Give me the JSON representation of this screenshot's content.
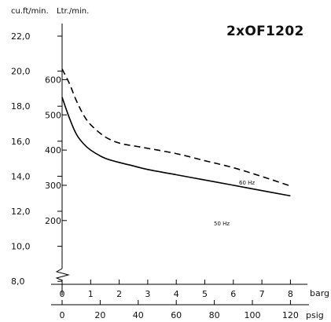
{
  "chart_data": {
    "type": "line",
    "title": "2xOF1202",
    "left_axes": {
      "cuft_unit": "cu.ft/min.",
      "ltr_unit": "Ltr./min.",
      "cuft_ticks": [
        "22,0",
        "20,0",
        "18,0",
        "16,0",
        "14,0",
        "12,0",
        "10,0",
        "8,0"
      ],
      "cuft_values": [
        22,
        20,
        18,
        16,
        14,
        12,
        10,
        8
      ],
      "ltr_ticks": [
        "600",
        "500",
        "400",
        "300",
        "200"
      ],
      "ltr_values": [
        600,
        500,
        400,
        300,
        200
      ]
    },
    "x_axis": {
      "unit": "barg",
      "ticks": [
        "0",
        "1",
        "2",
        "3",
        "4",
        "5",
        "6",
        "7",
        "8"
      ],
      "values": [
        0,
        1,
        2,
        3,
        4,
        5,
        6,
        7,
        8
      ],
      "range": [
        0,
        8.5
      ]
    },
    "x_axis_secondary": {
      "unit": "psig",
      "ticks": [
        "0",
        "20",
        "40",
        "60",
        "80",
        "100",
        "120"
      ],
      "values": [
        0,
        20,
        40,
        60,
        80,
        100,
        120
      ]
    },
    "series": [
      {
        "name": "60 Hz",
        "style": "dashed",
        "color": "#000000",
        "x": [
          0,
          0.25,
          0.5,
          0.75,
          1,
          1.5,
          2,
          2.5,
          3,
          4,
          5,
          6,
          7,
          8
        ],
        "y": [
          630,
          590,
          540,
          500,
          472,
          438,
          420,
          412,
          405,
          390,
          370,
          350,
          325,
          298
        ]
      },
      {
        "name": "50 Hz",
        "style": "solid",
        "color": "#000000",
        "x": [
          0,
          0.25,
          0.5,
          0.75,
          1,
          1.5,
          2,
          2.5,
          3,
          4,
          5,
          6,
          7,
          8
        ],
        "y": [
          550,
          492,
          445,
          418,
          400,
          377,
          365,
          355,
          345,
          330,
          315,
          300,
          285,
          270
        ]
      }
    ]
  }
}
